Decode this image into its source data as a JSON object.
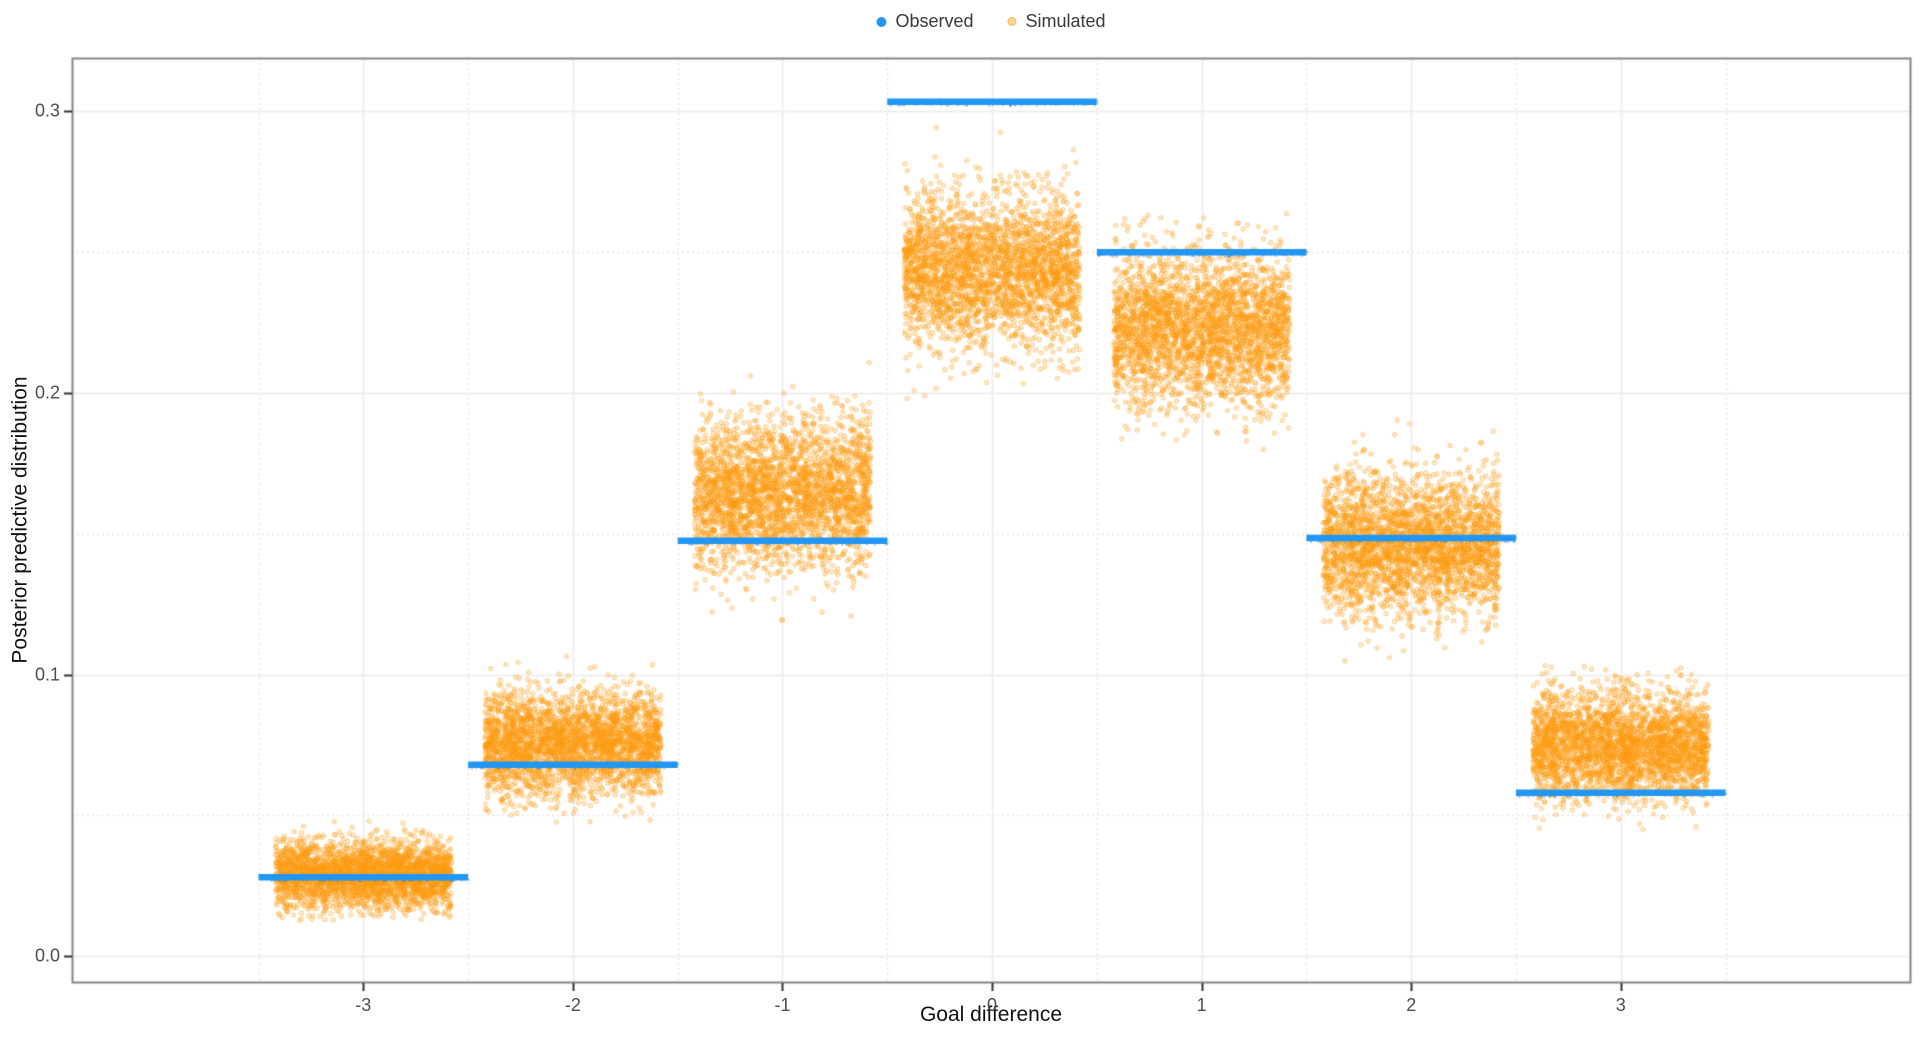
{
  "chart_data": {
    "type": "scatter",
    "title": "",
    "xlabel": "Goal difference",
    "ylabel": "Posterior predictive distribution",
    "legend": [
      {
        "label": "Observed",
        "color": "#2196F3"
      },
      {
        "label": "Simulated",
        "color": "#FFA51E"
      }
    ],
    "legend_position": "top-center",
    "grid": true,
    "xlim": [
      -4.39,
      4.38
    ],
    "ylim": [
      -0.0092,
      0.319
    ],
    "x_ticks": [
      -3,
      -2,
      -1,
      0,
      1,
      2,
      3
    ],
    "x_tick_labels": [
      "-3",
      "-2",
      "-1",
      "0",
      "1",
      "2",
      "3"
    ],
    "x_minor_gridlines": [
      -3.5,
      -2.5,
      -1.5,
      -0.5,
      0.5,
      1.5,
      2.5,
      3.5
    ],
    "y_ticks": [
      0.0,
      0.1,
      0.2,
      0.3
    ],
    "y_tick_labels": [
      "0.0",
      "0.1",
      "0.2",
      "0.3"
    ],
    "y_minor_gridlines": [
      0.05,
      0.15,
      0.25
    ],
    "observed_series": {
      "name": "Observed",
      "style": "horizontal segment per goal difference, half-width 0.5",
      "x": [
        -3,
        -2,
        -1,
        0,
        1,
        2,
        3
      ],
      "y": [
        0.028,
        0.068,
        0.1475,
        0.3035,
        0.25,
        0.1485,
        0.058
      ]
    },
    "simulated_series": {
      "name": "Simulated",
      "style": "jittered point cloud per goal difference",
      "jitter_halfwidth": 0.42,
      "sim_draws_rendered": 3000,
      "groups": [
        {
          "x": -3,
          "mean": 0.029,
          "sd": 0.006,
          "min": 0.012,
          "max": 0.048
        },
        {
          "x": -2,
          "mean": 0.0755,
          "sd": 0.0095,
          "min": 0.047,
          "max": 0.112
        },
        {
          "x": -1,
          "mean": 0.164,
          "sd": 0.0135,
          "min": 0.118,
          "max": 0.216
        },
        {
          "x": 0,
          "mean": 0.2435,
          "sd": 0.0135,
          "min": 0.198,
          "max": 0.3025
        },
        {
          "x": 1,
          "mean": 0.2225,
          "sd": 0.0135,
          "min": 0.178,
          "max": 0.276
        },
        {
          "x": 2,
          "mean": 0.146,
          "sd": 0.0125,
          "min": 0.104,
          "max": 0.192
        },
        {
          "x": 3,
          "mean": 0.0745,
          "sd": 0.0095,
          "min": 0.044,
          "max": 0.106
        }
      ]
    },
    "colors": {
      "observed_line": "#2196F3",
      "observed_line_dark": "#1565C0",
      "simulated_point": "#FFA51E",
      "simulated_point_edge": "#FD960A",
      "grid_major": "#ECECEC",
      "grid_minor": "#EDE5DB",
      "panel_border": "#858585",
      "tick_mark": "#333333",
      "background": "#FFFFFF"
    }
  }
}
